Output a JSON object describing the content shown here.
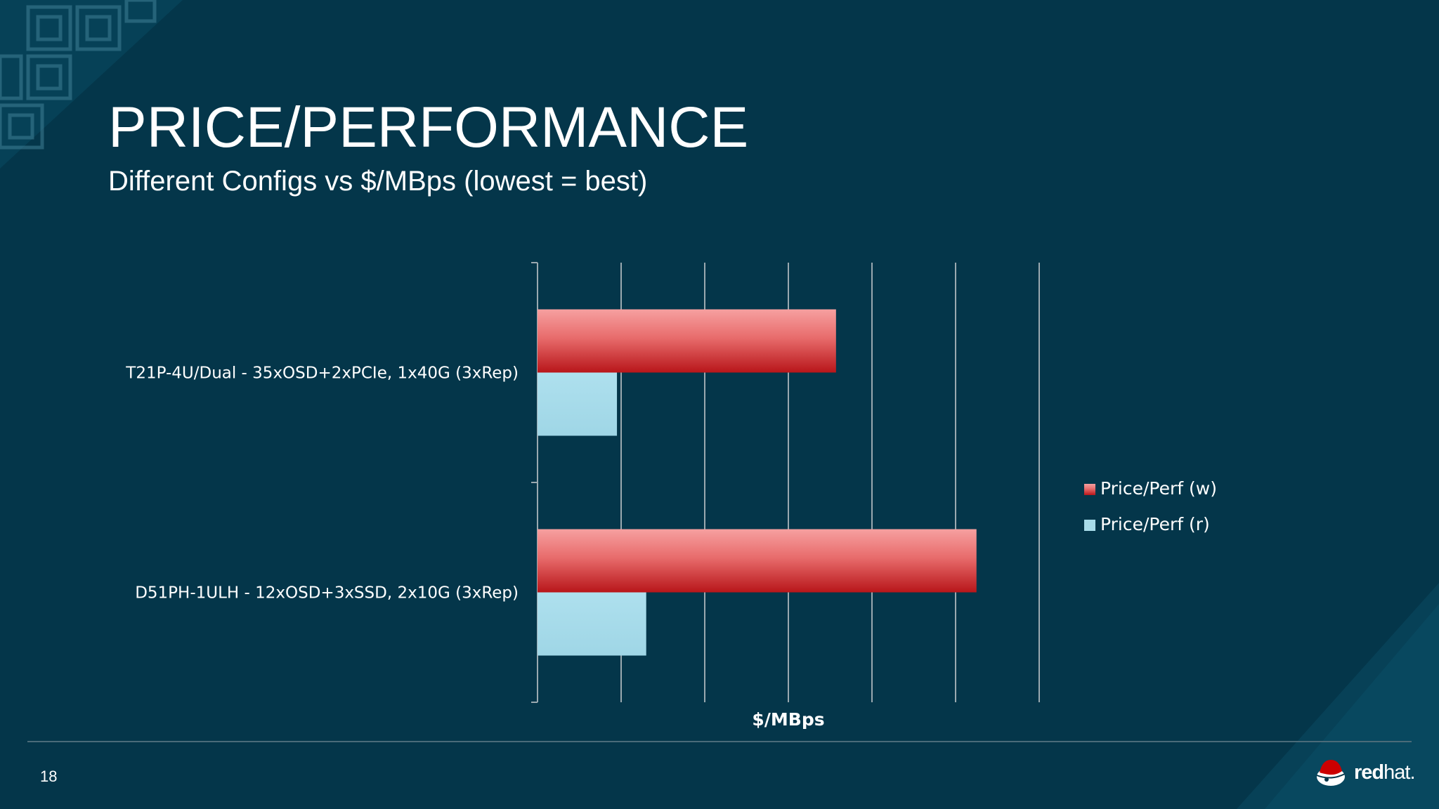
{
  "slide": {
    "title": "PRICE/PERFORMANCE",
    "subtitle": "Different Configs vs $/MBps (lowest = best)",
    "page_number": "18",
    "logo": {
      "bold": "red",
      "light": "hat."
    }
  },
  "colors": {
    "background": "#04364a",
    "write_bar": "#d52a2a",
    "read_bar": "#a8dcea",
    "grid": "#9aa9b0"
  },
  "chart_data": {
    "type": "bar",
    "orientation": "horizontal",
    "categories": [
      "T21P-4U/Dual - 35xOSD+2xPCIe, 1x40G (3xRep)",
      "D51PH-1ULH - 12xOSD+3xSSD, 2x10G (3xRep)"
    ],
    "series": [
      {
        "name": "Price/Perf (w)",
        "values": [
          3.57,
          5.25
        ]
      },
      {
        "name": "Price/Perf (r)",
        "values": [
          0.95,
          1.3
        ]
      }
    ],
    "xlabel": "$/MBps",
    "xlim": [
      0,
      6
    ],
    "x_gridlines": 6,
    "tick_labels_shown": false,
    "legend_position": "right"
  }
}
